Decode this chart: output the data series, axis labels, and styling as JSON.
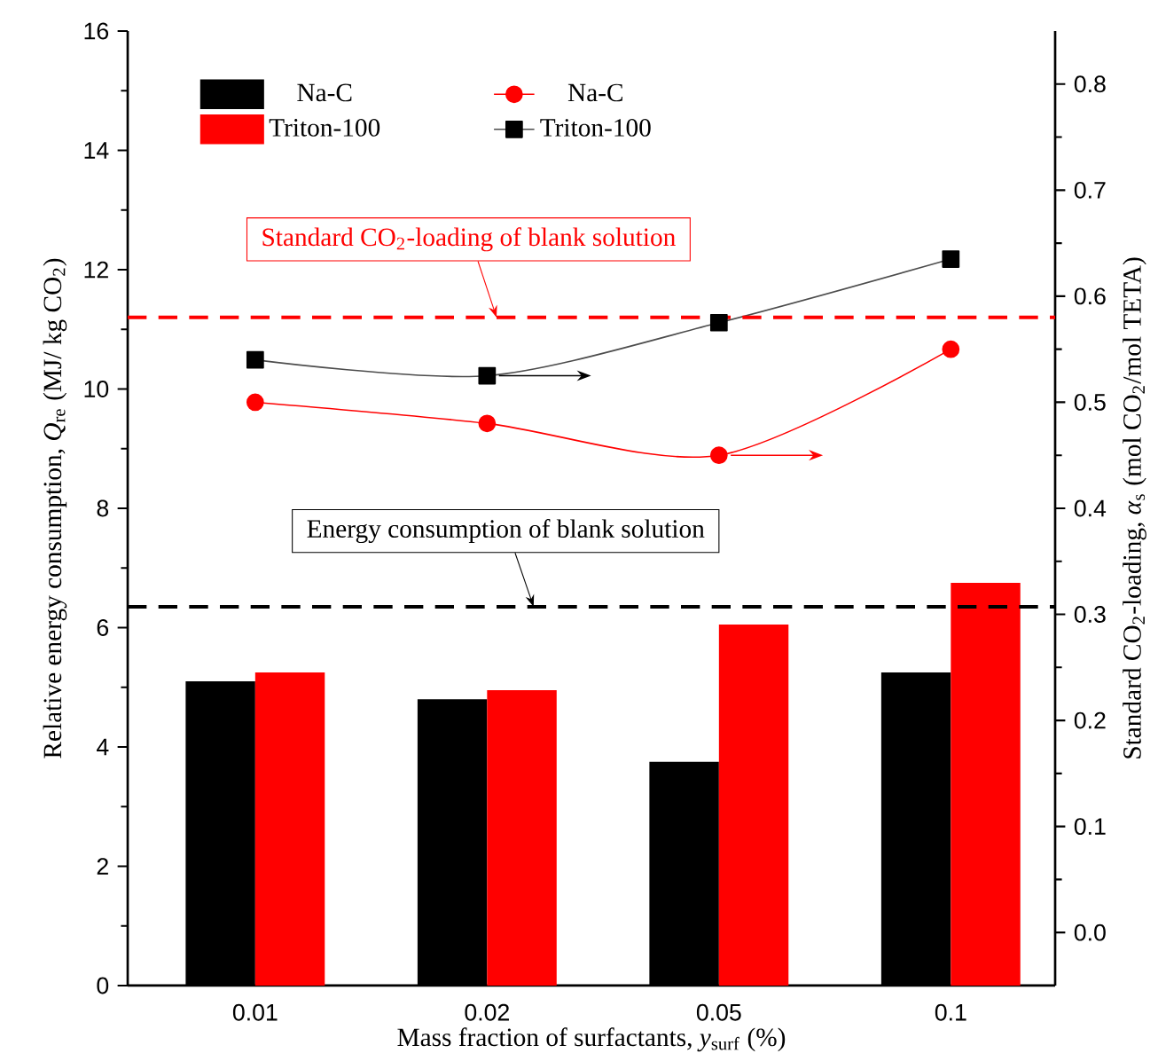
{
  "chart_data": {
    "type": "bar",
    "xlabel": "Mass fraction of surfactants, *y*$_{surf}$ (%)",
    "ylabel": "Relative energy consumption, *Q*$_{re}$ (MJ/ kg CO$_{2}$)",
    "y2label": "Standard CO$_{2}$-loading, *α*$_{s}$ (mol CO$_{2}$/mol TETA)",
    "categories": [
      "0.01",
      "0.02",
      "0.05",
      "0.1"
    ],
    "series": [
      {
        "name": "Na-C",
        "color": "#000000",
        "values": [
          5.1,
          4.8,
          3.75,
          5.25
        ]
      },
      {
        "name": "Triton-100",
        "color": "#ff0000",
        "values": [
          5.25,
          4.95,
          6.05,
          6.75
        ]
      },
      {
        "name": "Na-C",
        "type": "line",
        "axis": "y2",
        "color": "#ff0000",
        "marker": "circle",
        "values": [
          0.5,
          0.48,
          0.45,
          0.55
        ]
      },
      {
        "name": "Triton-100",
        "type": "line",
        "axis": "y2",
        "color": "#000000",
        "marker": "square",
        "values": [
          0.54,
          0.525,
          0.575,
          0.635
        ]
      }
    ],
    "ylim": [
      0,
      16
    ],
    "yticks": [
      0,
      2,
      4,
      6,
      8,
      10,
      12,
      14,
      16
    ],
    "y2lim": [
      -0.05,
      0.85
    ],
    "y2ticks": [
      {
        "value": 0,
        "label": "0.0"
      },
      0.1,
      0.2,
      0.3,
      0.4,
      0.5,
      0.6,
      0.7,
      0.8
    ],
    "ref_lines": [
      {
        "axis": "y2",
        "value": 0.58,
        "label": "Standard CO$_{2}$-loading of blank solution",
        "color": "#ff0000",
        "line_style": "dashed"
      },
      {
        "axis": "y",
        "value": 6.35,
        "label": "Energy consumption of blank solution",
        "color": "#000000",
        "line_style": "dashed"
      }
    ],
    "legend": "top left",
    "grid": false
  }
}
